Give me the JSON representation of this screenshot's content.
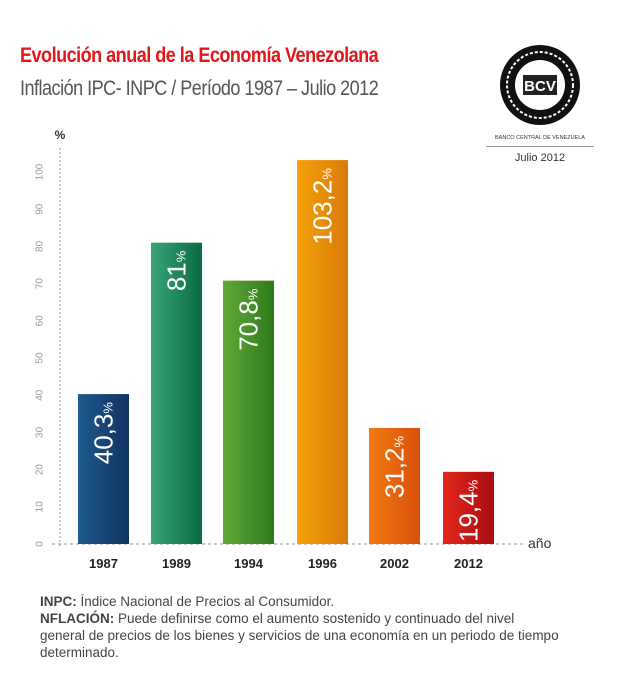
{
  "header": {
    "title": "Evolución anual de la Economía Venezolana",
    "subtitle": "Inflación IPC- INPC / Período 1987 – Julio 2012"
  },
  "logo": {
    "monogram": "BCV",
    "caption": "BANCO CENTRAL DE VENEZUELA",
    "date": "Julio 2012"
  },
  "chart_data": {
    "type": "bar",
    "categories": [
      "1987",
      "1989",
      "1994",
      "1996",
      "2002",
      "2012"
    ],
    "values": [
      40.3,
      81,
      70.8,
      103.2,
      31.2,
      19.4
    ],
    "data_labels": [
      "40,3",
      "81",
      "70,8",
      "103,2",
      "31,2",
      "19,4"
    ],
    "data_label_unit": "%",
    "ylabel": "%",
    "xlabel": "año",
    "ylim": [
      0,
      100
    ],
    "yticks": [
      0,
      10,
      20,
      30,
      40,
      50,
      60,
      70,
      80,
      90,
      100
    ],
    "colors": [
      [
        "#1f5a8c",
        "#0f3360"
      ],
      [
        "#3aa57a",
        "#0a6b40"
      ],
      [
        "#62a83a",
        "#2f7a1c"
      ],
      [
        "#f6a10a",
        "#d87a08"
      ],
      [
        "#f27a12",
        "#d9500a"
      ],
      [
        "#e4261c",
        "#a80d10"
      ]
    ],
    "grid": false
  },
  "notes": {
    "inpc_term": "INPC:",
    "inpc_text": " Índice Nacional de Precios al Consumidor.",
    "inflacion_term": "NFLACIÓN:",
    "inflacion_text": " Puede definirse como el aumento sostenido y continuado del nivel general de precios de los bienes y servicios de una economía en un periodo de tiempo determinado."
  }
}
